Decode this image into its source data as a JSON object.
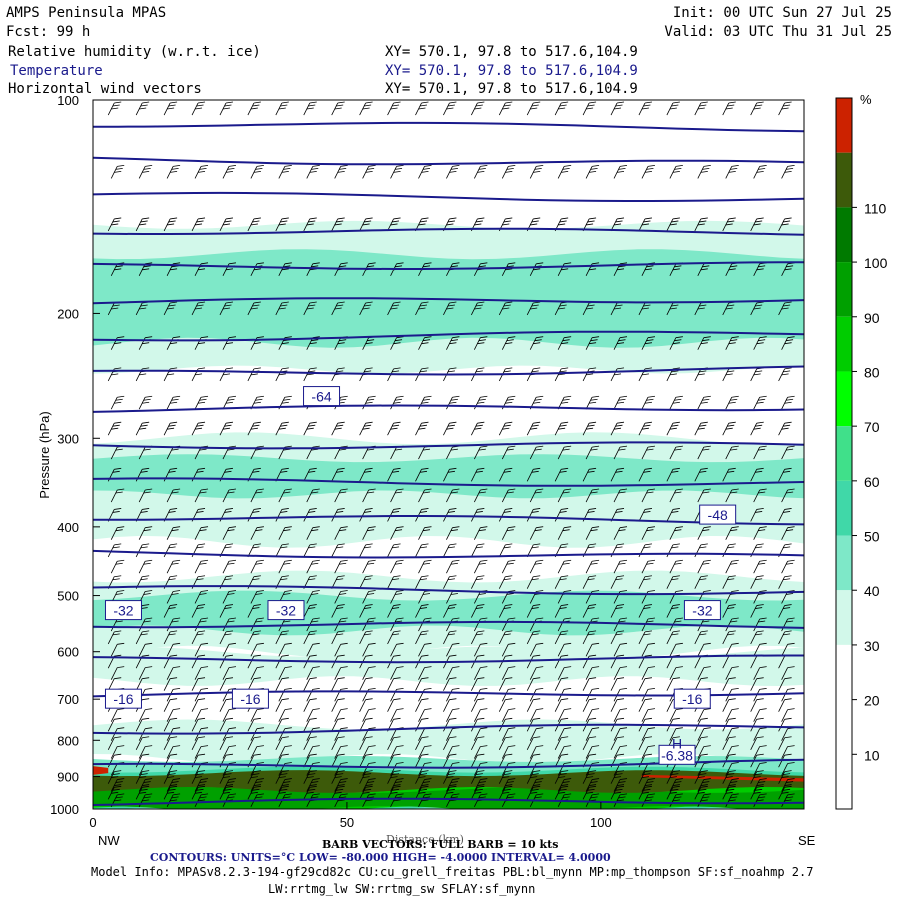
{
  "header": {
    "title": "AMPS Peninsula MPAS",
    "init": "Init: 00 UTC Sun 27 Jul 25",
    "fcst": "Fcst:   99 h",
    "valid": "Valid: 03 UTC Thu 31 Jul 25",
    "fields": [
      {
        "name": "Relative humidity (w.r.t. ice)",
        "xy": "XY= 570.1, 97.8 to 517.6,104.9"
      },
      {
        "name": "Temperature",
        "xy": "XY= 570.1, 97.8 to 517.6,104.9"
      },
      {
        "name": "Horizontal wind vectors",
        "xy": "XY= 570.1, 97.8 to 517.6,104.9"
      }
    ]
  },
  "chart_data": {
    "type": "heatmap",
    "ylabel": "Pressure (hPa)",
    "xlabel": "Distance (km)",
    "y_scale": "log",
    "ylim": [
      1000,
      100
    ],
    "xlim": [
      0,
      140
    ],
    "y_ticks": [
      100,
      200,
      300,
      400,
      500,
      600,
      700,
      800,
      900,
      1000
    ],
    "x_ticks": [
      0,
      50,
      100
    ],
    "x_end_labels": {
      "left": "NW",
      "right": "SE"
    },
    "colorbar": {
      "unit": "%",
      "ticks": [
        10,
        20,
        30,
        40,
        50,
        60,
        70,
        80,
        90,
        100,
        110
      ],
      "colors": [
        "#ffffff",
        "#ffffff",
        "#ffffff",
        "#d2f8ea",
        "#7ee8c8",
        "#40d8a8",
        "#40e08a",
        "#00ff00",
        "#00cc00",
        "#00a000",
        "#007a00",
        "#3d5a0a",
        "#cc2200"
      ]
    },
    "temperature_contours": {
      "units": "°C",
      "low": -80.0,
      "high": -4.0,
      "interval": 4.0,
      "levels": [
        {
          "value": -64,
          "pressure": 262
        },
        {
          "value": -48,
          "pressure": 385
        },
        {
          "value": -32,
          "pressure": 525
        },
        {
          "value": -16,
          "pressure": 700
        },
        {
          "value": -6.38,
          "pressure": 840
        }
      ],
      "labels": [
        "-64",
        "-48",
        "-32",
        "-32",
        "-32",
        "-16",
        "-16",
        "-16",
        "-6.38"
      ],
      "max_marker": "H"
    },
    "wind_barbs": {
      "full_barb_kts": 10
    }
  },
  "footer": {
    "barb": "BARB VECTORS: FULL BARB = 10 kts",
    "contours": "CONTOURS:  UNITS=°C  LOW= -80.000     HIGH= -4.0000     INTERVAL=   4.0000",
    "model1": "Model Info: MPASv8.2.3-194-gf29cd82c CU:cu_grell_freitas PBL:bl_mynn MP:mp_thompson SF:sf_noahmp 2.7",
    "model2": "LW:rrtmg_lw SW:rrtmg_sw SFLAY:sf_mynn"
  }
}
